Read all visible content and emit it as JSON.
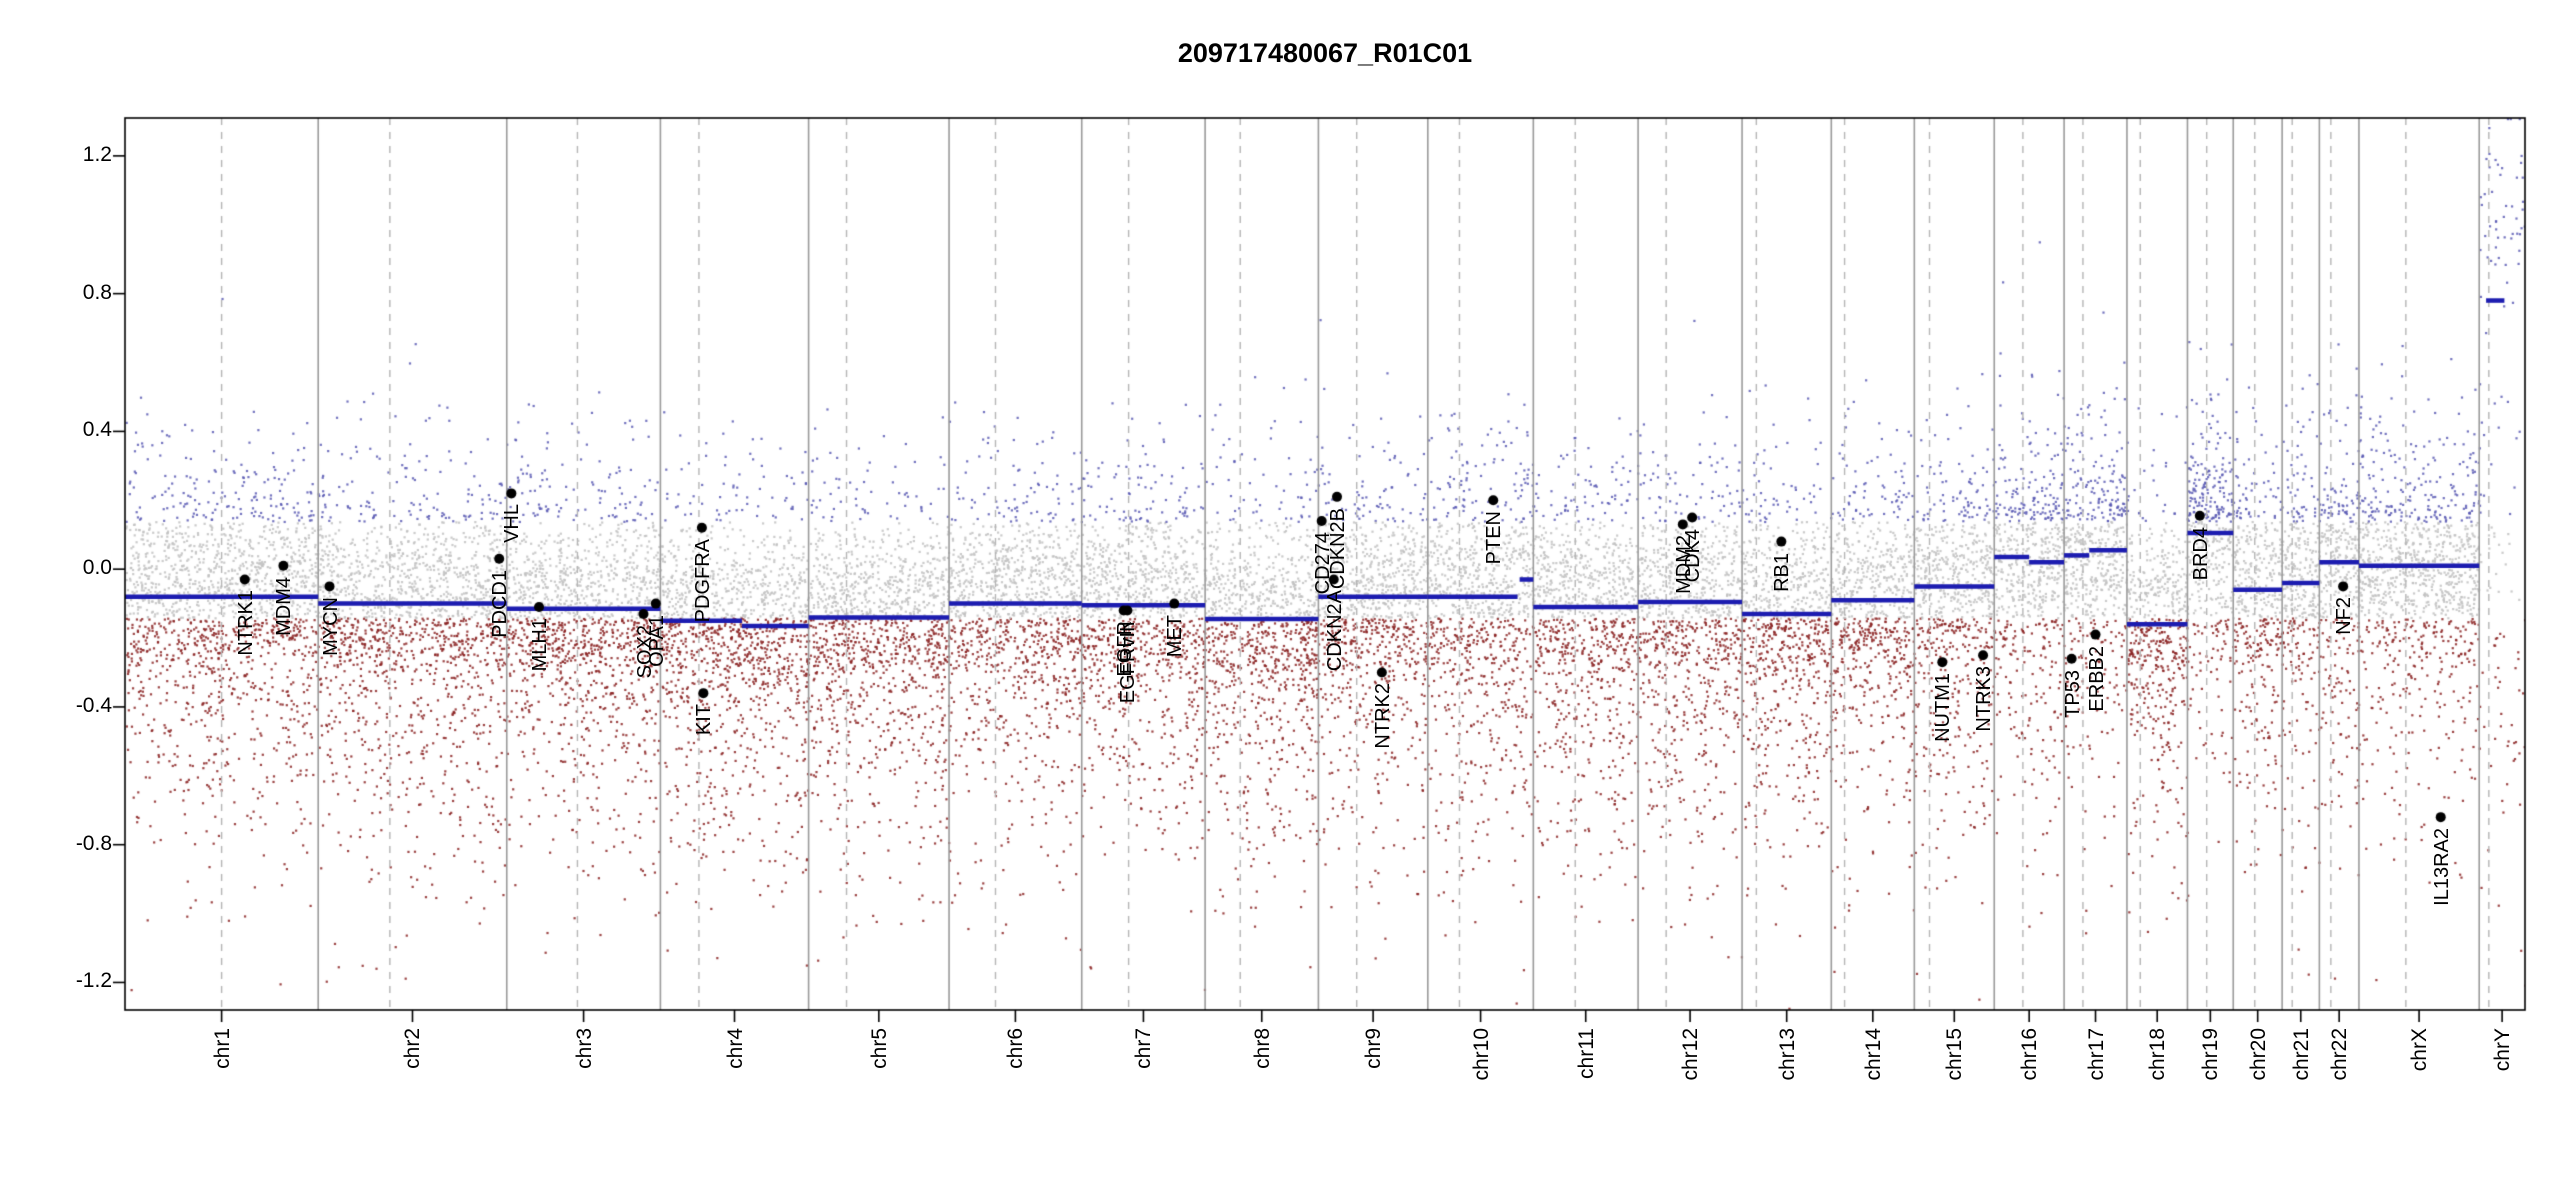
{
  "title": "209717480067_R01C01",
  "colors": {
    "point_high": "#5a5ab4",
    "point_low": "#8b2323",
    "point_mid": "#c2c2c2",
    "segment": "#1c1cb0",
    "boundary": "#9a9a9a",
    "centromere": "#b5b5b5",
    "gene_dot": "#000000",
    "box": "#000000",
    "text": "#000000"
  },
  "chart_data": {
    "type": "scatter",
    "title": "209717480067_R01C01",
    "xlabel": "",
    "ylabel": "",
    "ylim": [
      -1.28,
      1.31
    ],
    "y_ticks": [
      -1.2,
      -0.8,
      -0.4,
      0.0,
      0.4,
      0.8,
      1.2
    ],
    "y_tick_labels": [
      "-1.2",
      "-0.8",
      "-0.4",
      "0.0",
      "0.4",
      "0.8",
      "1.2"
    ],
    "grid": "vertical-chromosome-separators-only",
    "legend": "none",
    "color_threshold": 0.14,
    "chromosomes": [
      {
        "name": "chr1",
        "length": 249,
        "centromere": 0.5
      },
      {
        "name": "chr2",
        "length": 243,
        "centromere": 0.38
      },
      {
        "name": "chr3",
        "length": 198,
        "centromere": 0.46
      },
      {
        "name": "chr4",
        "length": 191,
        "centromere": 0.26
      },
      {
        "name": "chr5",
        "length": 181,
        "centromere": 0.27
      },
      {
        "name": "chr6",
        "length": 171,
        "centromere": 0.35
      },
      {
        "name": "chr7",
        "length": 159,
        "centromere": 0.38
      },
      {
        "name": "chr8",
        "length": 146,
        "centromere": 0.31
      },
      {
        "name": "chr9",
        "length": 141,
        "centromere": 0.35
      },
      {
        "name": "chr10",
        "length": 136,
        "centromere": 0.3
      },
      {
        "name": "chr11",
        "length": 135,
        "centromere": 0.4
      },
      {
        "name": "chr12",
        "length": 134,
        "centromere": 0.27
      },
      {
        "name": "chr13",
        "length": 115,
        "centromere": 0.16
      },
      {
        "name": "chr14",
        "length": 107,
        "centromere": 0.16
      },
      {
        "name": "chr15",
        "length": 103,
        "centromere": 0.19
      },
      {
        "name": "chr16",
        "length": 90,
        "centromere": 0.41
      },
      {
        "name": "chr17",
        "length": 81,
        "centromere": 0.3
      },
      {
        "name": "chr18",
        "length": 78,
        "centromere": 0.22
      },
      {
        "name": "chr19",
        "length": 59,
        "centromere": 0.42
      },
      {
        "name": "chr20",
        "length": 63,
        "centromere": 0.44
      },
      {
        "name": "chr21",
        "length": 48,
        "centromere": 0.27
      },
      {
        "name": "chr22",
        "length": 51,
        "centromere": 0.29
      },
      {
        "name": "chrX",
        "length": 155,
        "centromere": 0.39
      },
      {
        "name": "chrY",
        "length": 59,
        "centromere": 0.21
      }
    ],
    "segments": [
      {
        "chr": "chr1",
        "start": 0,
        "end": 1,
        "y": -0.08
      },
      {
        "chr": "chr2",
        "start": 0,
        "end": 1,
        "y": -0.1
      },
      {
        "chr": "chr3",
        "start": 0,
        "end": 1,
        "y": -0.115
      },
      {
        "chr": "chr4",
        "start": 0,
        "end": 0.55,
        "y": -0.15
      },
      {
        "chr": "chr4",
        "start": 0.55,
        "end": 1,
        "y": -0.165
      },
      {
        "chr": "chr5",
        "start": 0,
        "end": 1,
        "y": -0.14
      },
      {
        "chr": "chr6",
        "start": 0,
        "end": 1,
        "y": -0.1
      },
      {
        "chr": "chr7",
        "start": 0,
        "end": 1,
        "y": -0.105
      },
      {
        "chr": "chr8",
        "start": 0,
        "end": 1,
        "y": -0.145
      },
      {
        "chr": "chr9",
        "start": 0,
        "end": 1,
        "y": -0.08
      },
      {
        "chr": "chr10",
        "start": 0,
        "end": 0.85,
        "y": -0.08
      },
      {
        "chr": "chr10",
        "start": 0.87,
        "end": 1,
        "y": -0.03
      },
      {
        "chr": "chr11",
        "start": 0,
        "end": 1,
        "y": -0.11
      },
      {
        "chr": "chr12",
        "start": 0,
        "end": 1,
        "y": -0.095
      },
      {
        "chr": "chr13",
        "start": 0,
        "end": 1,
        "y": -0.13
      },
      {
        "chr": "chr14",
        "start": 0,
        "end": 1,
        "y": -0.09
      },
      {
        "chr": "chr15",
        "start": 0,
        "end": 1,
        "y": -0.05
      },
      {
        "chr": "chr16",
        "start": 0,
        "end": 0.5,
        "y": 0.035
      },
      {
        "chr": "chr16",
        "start": 0.5,
        "end": 1,
        "y": 0.02
      },
      {
        "chr": "chr17",
        "start": 0,
        "end": 0.4,
        "y": 0.04
      },
      {
        "chr": "chr17",
        "start": 0.4,
        "end": 1,
        "y": 0.055
      },
      {
        "chr": "chr18",
        "start": 0,
        "end": 1,
        "y": -0.16
      },
      {
        "chr": "chr19",
        "start": 0,
        "end": 1,
        "y": 0.105
      },
      {
        "chr": "chr20",
        "start": 0,
        "end": 1,
        "y": -0.06
      },
      {
        "chr": "chr21",
        "start": 0,
        "end": 1,
        "y": -0.04
      },
      {
        "chr": "chr22",
        "start": 0,
        "end": 1,
        "y": 0.02
      },
      {
        "chr": "chrX",
        "start": 0,
        "end": 1,
        "y": 0.01
      },
      {
        "chr": "chrY",
        "start": 0.15,
        "end": 0.55,
        "y": 0.78
      }
    ],
    "genes": [
      {
        "name": "NTRK1",
        "chr": "chr1",
        "pos": 0.62,
        "y": -0.03
      },
      {
        "name": "MDM4",
        "chr": "chr1",
        "pos": 0.82,
        "y": 0.01
      },
      {
        "name": "MYCN",
        "chr": "chr2",
        "pos": 0.06,
        "y": -0.05
      },
      {
        "name": "PDCD1",
        "chr": "chr2",
        "pos": 0.96,
        "y": 0.03
      },
      {
        "name": "VHL",
        "chr": "chr3",
        "pos": 0.03,
        "y": 0.22
      },
      {
        "name": "MLH1",
        "chr": "chr3",
        "pos": 0.21,
        "y": -0.11
      },
      {
        "name": "SOX2",
        "chr": "chr3",
        "pos": 0.89,
        "y": -0.13
      },
      {
        "name": "OPA1",
        "chr": "chr3",
        "pos": 0.97,
        "y": -0.1
      },
      {
        "name": "PDGFRA",
        "chr": "chr4",
        "pos": 0.28,
        "y": 0.12
      },
      {
        "name": "KIT",
        "chr": "chr4",
        "pos": 0.29,
        "y": -0.36
      },
      {
        "name": "EGFR",
        "chr": "chr7",
        "pos": 0.34,
        "y": -0.12
      },
      {
        "name": "EGFRvIII",
        "chr": "chr7",
        "pos": 0.37,
        "y": -0.12
      },
      {
        "name": "MET",
        "chr": "chr7",
        "pos": 0.75,
        "y": -0.1
      },
      {
        "name": "CD274",
        "chr": "chr9",
        "pos": 0.03,
        "y": 0.14
      },
      {
        "name": "CDKN2A",
        "chr": "chr9",
        "pos": 0.14,
        "y": -0.03
      },
      {
        "name": "CDKN2B",
        "chr": "chr9",
        "pos": 0.17,
        "y": 0.21
      },
      {
        "name": "NTRK2",
        "chr": "chr9",
        "pos": 0.58,
        "y": -0.3
      },
      {
        "name": "PTEN",
        "chr": "chr10",
        "pos": 0.62,
        "y": 0.2
      },
      {
        "name": "MDM2",
        "chr": "chr12",
        "pos": 0.43,
        "y": 0.13
      },
      {
        "name": "CDK4",
        "chr": "chr12",
        "pos": 0.52,
        "y": 0.15
      },
      {
        "name": "RB1",
        "chr": "chr13",
        "pos": 0.44,
        "y": 0.08
      },
      {
        "name": "NUTM1",
        "chr": "chr15",
        "pos": 0.35,
        "y": -0.27
      },
      {
        "name": "NTRK3",
        "chr": "chr15",
        "pos": 0.86,
        "y": -0.25
      },
      {
        "name": "TP53",
        "chr": "chr17",
        "pos": 0.12,
        "y": -0.26
      },
      {
        "name": "ERBB2",
        "chr": "chr17",
        "pos": 0.5,
        "y": -0.19
      },
      {
        "name": "BRD4",
        "chr": "chr19",
        "pos": 0.27,
        "y": 0.155
      },
      {
        "name": "NF2",
        "chr": "chr22",
        "pos": 0.6,
        "y": -0.05
      },
      {
        "name": "IL13RA2",
        "chr": "chrX",
        "pos": 0.68,
        "y": -0.72
      }
    ],
    "scatter": {
      "seed": 20231117,
      "points_per_unit_length": 6.8,
      "core_frac": 0.55,
      "core_sd": 0.1,
      "low_frac": 0.27,
      "low_offset": -0.08,
      "low_sd": 0.34,
      "high_offset": 0.08,
      "high_sd": 0.2,
      "chrY": {
        "n": 130,
        "high_frac": 0.33,
        "high_mean": 1.08,
        "high_sd": 0.16,
        "rest_mean": -0.2,
        "rest_sd": 0.6
      }
    }
  }
}
